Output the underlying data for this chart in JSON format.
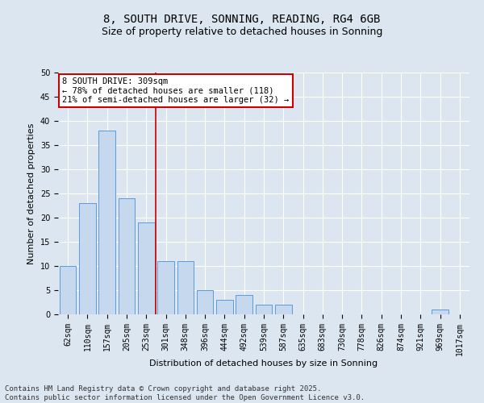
{
  "title": "8, SOUTH DRIVE, SONNING, READING, RG4 6GB",
  "subtitle": "Size of property relative to detached houses in Sonning",
  "xlabel": "Distribution of detached houses by size in Sonning",
  "ylabel": "Number of detached properties",
  "categories": [
    "62sqm",
    "110sqm",
    "157sqm",
    "205sqm",
    "253sqm",
    "301sqm",
    "348sqm",
    "396sqm",
    "444sqm",
    "492sqm",
    "539sqm",
    "587sqm",
    "635sqm",
    "683sqm",
    "730sqm",
    "778sqm",
    "826sqm",
    "874sqm",
    "921sqm",
    "969sqm",
    "1017sqm"
  ],
  "values": [
    10,
    23,
    38,
    24,
    19,
    11,
    11,
    5,
    3,
    4,
    2,
    2,
    0,
    0,
    0,
    0,
    0,
    0,
    0,
    1,
    0
  ],
  "bar_color": "#c5d8ed",
  "bar_edge_color": "#5b9bd5",
  "marker_idx": 5,
  "marker_line_color": "#cc0000",
  "annotation_line1": "8 SOUTH DRIVE: 309sqm",
  "annotation_line2": "← 78% of detached houses are smaller (118)",
  "annotation_line3": "21% of semi-detached houses are larger (32) →",
  "annotation_box_color": "#ffffff",
  "annotation_box_edge": "#cc0000",
  "ylim": [
    0,
    50
  ],
  "yticks": [
    0,
    5,
    10,
    15,
    20,
    25,
    30,
    35,
    40,
    45,
    50
  ],
  "bg_color": "#dce6f0",
  "plot_bg_color": "#dce6f0",
  "footer": "Contains HM Land Registry data © Crown copyright and database right 2025.\nContains public sector information licensed under the Open Government Licence v3.0.",
  "title_fontsize": 10,
  "subtitle_fontsize": 9,
  "axis_label_fontsize": 8,
  "tick_fontsize": 7,
  "annotation_fontsize": 7.5,
  "footer_fontsize": 6.5
}
